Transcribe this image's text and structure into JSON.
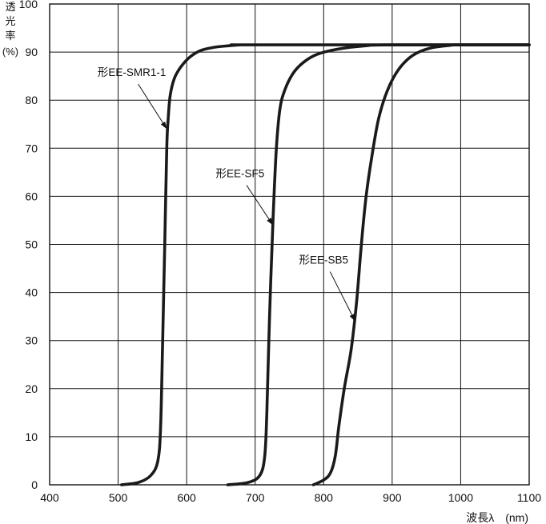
{
  "chart_data": {
    "type": "line",
    "title": "",
    "ylabel_lines": [
      "透",
      "光",
      "率",
      "(%)"
    ],
    "xlabel": "波長λ　(nm)",
    "xlim": [
      400,
      1100
    ],
    "ylim": [
      0,
      100
    ],
    "x_ticks": [
      400,
      500,
      600,
      700,
      800,
      900,
      1000,
      1100
    ],
    "y_ticks": [
      0,
      10,
      20,
      30,
      40,
      50,
      60,
      70,
      80,
      90,
      100
    ],
    "grid": true,
    "series": [
      {
        "name": "形EE-SMR1-1",
        "label_at": [
          520,
          85
        ],
        "arrow_tip": [
          571,
          74
        ],
        "points": [
          [
            505,
            0
          ],
          [
            530,
            0.5
          ],
          [
            548,
            2
          ],
          [
            558,
            5
          ],
          [
            562,
            12
          ],
          [
            565,
            30
          ],
          [
            568,
            50
          ],
          [
            571,
            70
          ],
          [
            573,
            76
          ],
          [
            576,
            81
          ],
          [
            582,
            84.5
          ],
          [
            592,
            87
          ],
          [
            605,
            89
          ],
          [
            620,
            90.3
          ],
          [
            640,
            91
          ],
          [
            660,
            91.3
          ],
          [
            680,
            91.5
          ],
          [
            700,
            91.5
          ],
          [
            1100,
            91.5
          ]
        ]
      },
      {
        "name": "形EE-SF5",
        "label_at": [
          678,
          64
        ],
        "arrow_tip": [
          726,
          54
        ],
        "points": [
          [
            660,
            0
          ],
          [
            690,
            0.5
          ],
          [
            707,
            2
          ],
          [
            714,
            6
          ],
          [
            717,
            15
          ],
          [
            721,
            35
          ],
          [
            726,
            55
          ],
          [
            731,
            70
          ],
          [
            736,
            78
          ],
          [
            743,
            82
          ],
          [
            755,
            85.5
          ],
          [
            770,
            87.8
          ],
          [
            790,
            89.5
          ],
          [
            820,
            90.6
          ],
          [
            860,
            91.3
          ],
          [
            900,
            91.5
          ],
          [
            1100,
            91.5
          ]
        ]
      },
      {
        "name": "形EE-SB5",
        "label_at": [
          800,
          46
        ],
        "arrow_tip": [
          846,
          34
        ],
        "points": [
          [
            785,
            0
          ],
          [
            800,
            1
          ],
          [
            810,
            2.5
          ],
          [
            817,
            6
          ],
          [
            822,
            12
          ],
          [
            830,
            20
          ],
          [
            840,
            28
          ],
          [
            848,
            38
          ],
          [
            855,
            50
          ],
          [
            862,
            60
          ],
          [
            870,
            68
          ],
          [
            880,
            76
          ],
          [
            893,
            82
          ],
          [
            910,
            86.5
          ],
          [
            930,
            89.3
          ],
          [
            955,
            90.8
          ],
          [
            985,
            91.4
          ],
          [
            1000,
            91.5
          ],
          [
            1100,
            91.5
          ]
        ]
      }
    ]
  }
}
